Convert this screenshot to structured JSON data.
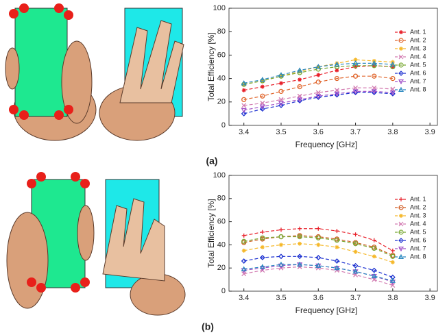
{
  "chart_data": [
    {
      "type": "line",
      "label": "(a)",
      "x_label": "Frequency [GHz]",
      "y_label": "Total Efficiency [%]",
      "x": [
        3.4,
        3.45,
        3.5,
        3.55,
        3.6,
        3.65,
        3.7,
        3.75,
        3.8
      ],
      "xlim": [
        3.36,
        3.92
      ],
      "xticks": [
        3.4,
        3.5,
        3.6,
        3.7,
        3.8,
        3.9
      ],
      "ylim": [
        0,
        100
      ],
      "yticks": [
        0,
        20,
        40,
        60,
        80,
        100
      ],
      "legend": "upper right",
      "series": [
        {
          "name": "Ant. 1",
          "color": "#e8202a",
          "marker": "star",
          "values": [
            30,
            33,
            36,
            39,
            43,
            47,
            50,
            51,
            50
          ]
        },
        {
          "name": "Ant. 2",
          "color": "#e0642a",
          "marker": "circle",
          "values": [
            22,
            25,
            29,
            33,
            37,
            40,
            42,
            42,
            40
          ]
        },
        {
          "name": "Ant. 3",
          "color": "#f5b82a",
          "marker": "star",
          "values": [
            35,
            38,
            42,
            46,
            50,
            53,
            56,
            55,
            54
          ]
        },
        {
          "name": "Ant. 4",
          "color": "#d27ab0",
          "marker": "x",
          "values": [
            17,
            19,
            22,
            25,
            28,
            30,
            32,
            32,
            31
          ]
        },
        {
          "name": "Ant. 5",
          "color": "#78a832",
          "marker": "circle",
          "values": [
            35,
            38,
            42,
            45,
            48,
            50,
            51,
            51,
            50
          ]
        },
        {
          "name": "Ant. 6",
          "color": "#1a2fd0",
          "marker": "diamond",
          "values": [
            10,
            14,
            17,
            21,
            24,
            26,
            28,
            28,
            27
          ]
        },
        {
          "name": "Ant. 7",
          "color": "#a050c8",
          "marker": "tri-down",
          "values": [
            13,
            16,
            19,
            22,
            25,
            27,
            29,
            29,
            28
          ]
        },
        {
          "name": "Ant. 8",
          "color": "#2a88c0",
          "marker": "tri-up",
          "values": [
            36,
            39,
            43,
            47,
            50,
            52,
            53,
            53,
            52
          ]
        }
      ]
    },
    {
      "type": "line",
      "label": "(b)",
      "x_label": "Frequency [GHz]",
      "y_label": "Total Efficiency [%]",
      "x": [
        3.4,
        3.45,
        3.5,
        3.55,
        3.6,
        3.65,
        3.7,
        3.75,
        3.8
      ],
      "xlim": [
        3.36,
        3.92
      ],
      "xticks": [
        3.4,
        3.5,
        3.6,
        3.7,
        3.8,
        3.9
      ],
      "ylim": [
        0,
        100
      ],
      "yticks": [
        0,
        20,
        40,
        60,
        80,
        100
      ],
      "legend": "upper right",
      "series": [
        {
          "name": "Ant. 1",
          "color": "#e8202a",
          "marker": "plus",
          "values": [
            48,
            51,
            53,
            54,
            54,
            52,
            49,
            44,
            35
          ]
        },
        {
          "name": "Ant. 2",
          "color": "#d05a20",
          "marker": "circle",
          "values": [
            42,
            45,
            47,
            48,
            47,
            45,
            42,
            38,
            31
          ]
        },
        {
          "name": "Ant. 3",
          "color": "#f5b82a",
          "marker": "star",
          "values": [
            35,
            38,
            40,
            41,
            40,
            38,
            34,
            30,
            25
          ]
        },
        {
          "name": "Ant. 4",
          "color": "#d27ab0",
          "marker": "x",
          "values": [
            15,
            18,
            20,
            21,
            20,
            18,
            14,
            10,
            5
          ]
        },
        {
          "name": "Ant. 5",
          "color": "#78a832",
          "marker": "circle",
          "values": [
            43,
            46,
            47,
            47,
            46,
            44,
            41,
            37,
            30
          ]
        },
        {
          "name": "Ant. 6",
          "color": "#1a2fd0",
          "marker": "diamond",
          "values": [
            26,
            29,
            30,
            30,
            29,
            26,
            22,
            18,
            12
          ]
        },
        {
          "name": "Ant. 7",
          "color": "#a050c8",
          "marker": "tri-down",
          "values": [
            18,
            20,
            22,
            23,
            22,
            20,
            17,
            13,
            8
          ]
        },
        {
          "name": "Ant. 8",
          "color": "#2a88c0",
          "marker": "tri-up",
          "values": [
            19,
            21,
            23,
            23,
            22,
            20,
            17,
            13,
            9
          ]
        }
      ]
    }
  ]
}
